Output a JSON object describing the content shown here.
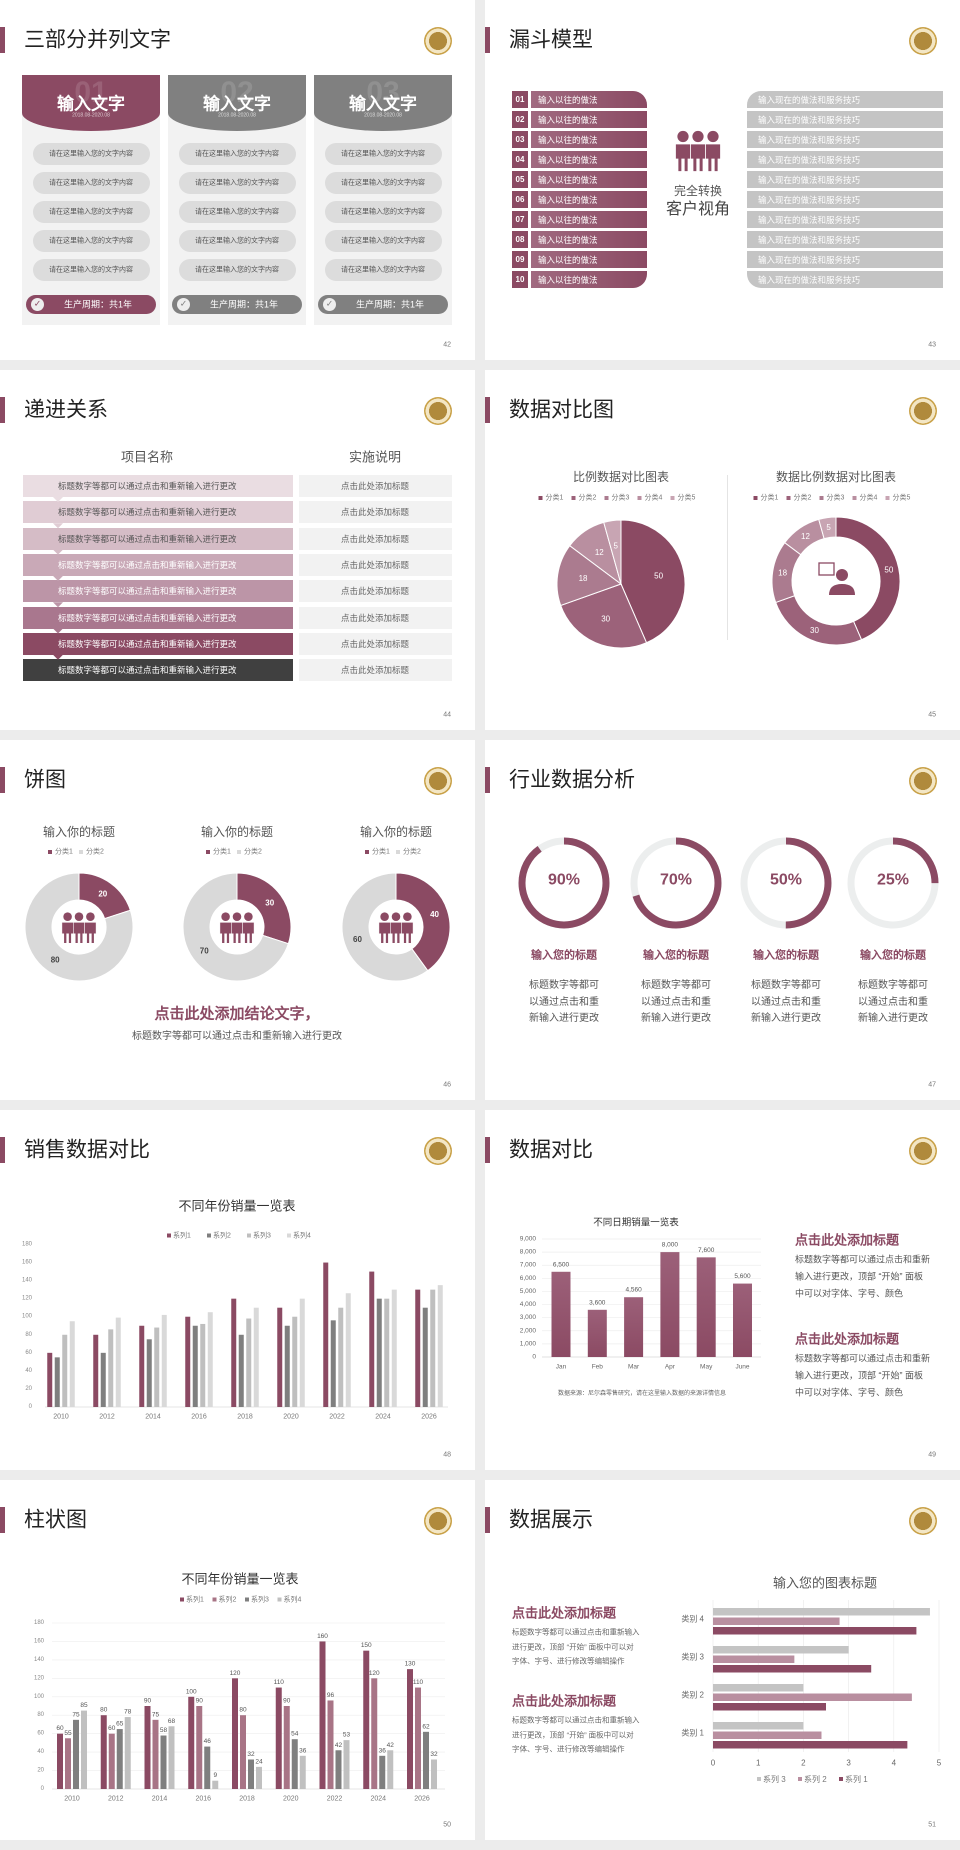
{
  "colors": {
    "accent": "#8b4a63",
    "gray": "#808080",
    "light_gray": "#d9d9d9",
    "panel": "#f2f2f2",
    "logo_gold": "#c9a24a"
  },
  "slides": [
    {
      "page": "42",
      "title": "三部分并列文字",
      "cards": [
        {
          "number": "01",
          "title": "输入文字",
          "date": "2018.08-2020.08",
          "items": [
            "请在这里输入您的文字内容",
            "请在这里输入您的文字内容",
            "请在这里输入您的文字内容",
            "请在这里输入您的文字内容",
            "请在这里输入您的文字内容"
          ],
          "footer": "生产周期：共1年"
        },
        {
          "number": "02",
          "title": "输入文字",
          "date": "2018.08-2020.08",
          "items": [
            "请在这里输入您的文字内容",
            "请在这里输入您的文字内容",
            "请在这里输入您的文字内容",
            "请在这里输入您的文字内容",
            "请在这里输入您的文字内容"
          ],
          "footer": "生产周期：共1年"
        },
        {
          "number": "03",
          "title": "输入文字",
          "date": "2018.08-2020.08",
          "items": [
            "请在这里输入您的文字内容",
            "请在这里输入您的文字内容",
            "请在这里输入您的文字内容",
            "请在这里输入您的文字内容",
            "请在这里输入您的文字内容"
          ],
          "footer": "生产周期：共1年"
        }
      ]
    },
    {
      "page": "43",
      "title": "漏斗模型",
      "left_rows": [
        {
          "num": "01",
          "text": "输入以往的做法"
        },
        {
          "num": "02",
          "text": "输入以往的做法"
        },
        {
          "num": "03",
          "text": "输入以往的做法"
        },
        {
          "num": "04",
          "text": "输入以往的做法"
        },
        {
          "num": "05",
          "text": "输入以往的做法"
        },
        {
          "num": "06",
          "text": "输入以往的做法"
        },
        {
          "num": "07",
          "text": "输入以往的做法"
        },
        {
          "num": "08",
          "text": "输入以往的做法"
        },
        {
          "num": "09",
          "text": "输入以往的做法"
        },
        {
          "num": "10",
          "text": "输入以往的做法"
        }
      ],
      "right_rows": [
        "输入现在的做法和服务技巧",
        "输入现在的做法和服务技巧",
        "输入现在的做法和服务技巧",
        "输入现在的做法和服务技巧",
        "输入现在的做法和服务技巧",
        "输入现在的做法和服务技巧",
        "输入现在的做法和服务技巧",
        "输入现在的做法和服务技巧",
        "输入现在的做法和服务技巧",
        "输入现在的做法和服务技巧"
      ],
      "center_line1": "完全转换",
      "center_line2": "客户视角",
      "center_icon": "people-group-icon"
    },
    {
      "page": "44",
      "title": "递进关系",
      "col1_header": "项目名称",
      "col2_header": "实施说明",
      "rows": [
        {
          "item": "标题数字等都可以通过点击和重新输入进行更改",
          "note": "点击此处添加标题"
        },
        {
          "item": "标题数字等都可以通过点击和重新输入进行更改",
          "note": "点击此处添加标题"
        },
        {
          "item": "标题数字等都可以通过点击和重新输入进行更改",
          "note": "点击此处添加标题"
        },
        {
          "item": "标题数字等都可以通过点击和重新输入进行更改",
          "note": "点击此处添加标题"
        },
        {
          "item": "标题数字等都可以通过点击和重新输入进行更改",
          "note": "点击此处添加标题"
        },
        {
          "item": "标题数字等都可以通过点击和重新输入进行更改",
          "note": "点击此处添加标题"
        },
        {
          "item": "标题数字等都可以通过点击和重新输入进行更改",
          "note": "点击此处添加标题"
        },
        {
          "item": "标题数字等都可以通过点击和重新输入进行更改",
          "note": "点击此处添加标题"
        }
      ],
      "row_colors": [
        "#eadde2",
        "#e0ccd4",
        "#d5bcc6",
        "#c9a9b7",
        "#bc95a7",
        "#a9778e",
        "#8b4a63",
        "#404040"
      ]
    },
    {
      "page": "45",
      "title": "数据对比图",
      "charts": [
        0,
        1
      ],
      "donut_icon": "customer-service-icon"
    },
    {
      "page": "46",
      "title": "饼图",
      "charts": [
        2,
        3,
        4
      ],
      "conclusion": "点击此处添加结论文字，",
      "subtitle": "标题数字等都可以通过点击和重新输入进行更改"
    },
    {
      "page": "47",
      "title": "行业数据分析",
      "rings": [
        {
          "percent": 90,
          "label": "90%",
          "heading": "输入您的标题",
          "lines": [
            "标题数字等都可",
            "以通过点击和重",
            "新输入进行更改"
          ]
        },
        {
          "percent": 70,
          "label": "70%",
          "heading": "输入您的标题",
          "lines": [
            "标题数字等都可",
            "以通过点击和重",
            "新输入进行更改"
          ]
        },
        {
          "percent": 50,
          "label": "50%",
          "heading": "输入您的标题",
          "lines": [
            "标题数字等都可",
            "以通过点击和重",
            "新输入进行更改"
          ]
        },
        {
          "percent": 25,
          "label": "25%",
          "heading": "输入您的标题",
          "lines": [
            "标题数字等都可",
            "以通过点击和重",
            "新输入进行更改"
          ]
        }
      ]
    },
    {
      "page": "48",
      "title": "销售数据对比",
      "charts": [
        5
      ]
    },
    {
      "page": "49",
      "title": "数据对比",
      "charts": [
        6
      ],
      "source": "数据来源：尼尔森零售研究，请在这里输入数据的来源详情信息",
      "blocks": [
        {
          "heading": "点击此处添加标题",
          "lines": [
            "标题数字等都可以通过点击和重新",
            "输入进行更改，顶部 “开始” 面板",
            "中可以对字体、字号、颜色"
          ]
        },
        {
          "heading": "点击此处添加标题",
          "lines": [
            "标题数字等都可以通过点击和重新",
            "输入进行更改，顶部 “开始” 面板",
            "中可以对字体、字号、颜色"
          ]
        }
      ]
    },
    {
      "page": "50",
      "title": "柱状图",
      "charts": [
        7
      ]
    },
    {
      "page": "51",
      "title": "数据展示",
      "charts": [
        8
      ],
      "blocks": [
        {
          "heading": "点击此处添加标题",
          "lines": [
            "标题数字等都可以通过点击和重新输入",
            "进行更改，顶部 “开始” 面板中可以对",
            "字体、字号、进行修改等编辑操作"
          ]
        },
        {
          "heading": "点击此处添加标题",
          "lines": [
            "标题数字等都可以通过点击和重新输入",
            "进行更改，顶部 “开始” 面板中可以对",
            "字体、字号、进行修改等编辑操作"
          ]
        }
      ]
    }
  ],
  "chart_data": [
    {
      "type": "pie",
      "title": "比例数据对比图表",
      "categories": [
        "分类1",
        "分类2",
        "分类3",
        "分类4",
        "分类5"
      ],
      "values": [
        50,
        30,
        18,
        12,
        5
      ],
      "colors": [
        "#8b4a63",
        "#9c627a",
        "#ab7b8f",
        "#b98fa0",
        "#c8a5b3"
      ],
      "legend": "top"
    },
    {
      "type": "pie",
      "donut": true,
      "title": "数据比例数据对比图表",
      "categories": [
        "分类1",
        "分类2",
        "分类3",
        "分类4",
        "分类5"
      ],
      "values": [
        50,
        30,
        18,
        12,
        5
      ],
      "colors": [
        "#8b4a63",
        "#9c627a",
        "#ab7b8f",
        "#b98fa0",
        "#c8a5b3"
      ],
      "legend": "top"
    },
    {
      "type": "pie",
      "donut": true,
      "title": "输入你的标题",
      "categories": [
        "分类1",
        "分类2"
      ],
      "values": [
        20,
        80
      ],
      "colors": [
        "#8b4a63",
        "#d9d9d9"
      ],
      "legend": "top"
    },
    {
      "type": "pie",
      "donut": true,
      "title": "输入你的标题",
      "categories": [
        "分类1",
        "分类2"
      ],
      "values": [
        30,
        70
      ],
      "colors": [
        "#8b4a63",
        "#d9d9d9"
      ],
      "legend": "top"
    },
    {
      "type": "pie",
      "donut": true,
      "title": "输入你的标题",
      "categories": [
        "分类1",
        "分类2"
      ],
      "values": [
        40,
        60
      ],
      "colors": [
        "#8b4a63",
        "#d9d9d9"
      ],
      "legend": "top"
    },
    {
      "type": "bar",
      "title": "不同年份销量一览表",
      "categories": [
        "2010",
        "2012",
        "2014",
        "2016",
        "2018",
        "2020",
        "2022",
        "2024",
        "2026"
      ],
      "series": [
        {
          "name": "系列1",
          "color": "#8b4a63",
          "values": [
            60,
            80,
            90,
            100,
            120,
            110,
            160,
            150,
            130
          ]
        },
        {
          "name": "系列2",
          "color": "#7f7f7f",
          "values": [
            55,
            60,
            75,
            90,
            80,
            90,
            96,
            120,
            110
          ]
        },
        {
          "name": "系列3",
          "color": "#bfbfbf",
          "values": [
            80,
            86,
            88,
            92,
            98,
            100,
            110,
            120,
            130
          ]
        },
        {
          "name": "系列4",
          "color": "#d9d9d9",
          "values": [
            95,
            99,
            102,
            105,
            110,
            120,
            126,
            130,
            135
          ]
        }
      ],
      "ylim": [
        0,
        180
      ],
      "yticks": [
        "0",
        "20",
        "40",
        "60",
        "80",
        "100",
        "120",
        "140",
        "160",
        "180"
      ],
      "grid": false,
      "legend": "top"
    },
    {
      "type": "bar",
      "title": "不同日期销量一览表",
      "categories": [
        "Jan",
        "Feb",
        "Mar",
        "Apr",
        "May",
        "June"
      ],
      "values": [
        6500,
        3600,
        4560,
        8000,
        7600,
        5600
      ],
      "data_labels": [
        "6,500",
        "3,600",
        "4,560",
        "8,000",
        "7,600",
        "5,600"
      ],
      "color": "#8b4a63",
      "ylim": [
        0,
        9000
      ],
      "yticks": [
        "0",
        "1,000",
        "2,000",
        "3,000",
        "4,000",
        "5,000",
        "6,000",
        "7,000",
        "8,000",
        "9,000"
      ],
      "grid": true
    },
    {
      "type": "bar",
      "title": "不同年份销量一览表",
      "categories": [
        "2010",
        "2012",
        "2014",
        "2016",
        "2018",
        "2020",
        "2022",
        "2024",
        "2026"
      ],
      "series": [
        {
          "name": "系列1",
          "color": "#8b4a63",
          "values": [
            60,
            80,
            90,
            100,
            120,
            110,
            160,
            150,
            130
          ]
        },
        {
          "name": "系列2",
          "color": "#a87486",
          "values": [
            55,
            60,
            75,
            90,
            80,
            90,
            96,
            120,
            110
          ]
        },
        {
          "name": "系列3",
          "color": "#7f7f7f",
          "values": [
            75,
            65,
            58,
            46,
            32,
            54,
            42,
            36,
            62
          ]
        },
        {
          "name": "系列4",
          "color": "#c0c0c0",
          "values": [
            85,
            78,
            68,
            9,
            24,
            36,
            53,
            42,
            32
          ]
        }
      ],
      "ylim": [
        0,
        180
      ],
      "yticks": [
        "0",
        "20",
        "40",
        "60",
        "80",
        "100",
        "120",
        "140",
        "160",
        "180"
      ],
      "grid": true,
      "data_labels": true,
      "legend": "top"
    },
    {
      "type": "bar",
      "orientation": "horizontal",
      "title": "输入您的图表标题",
      "categories": [
        "类别 1",
        "类别 2",
        "类别 3",
        "类别 4"
      ],
      "series": [
        {
          "name": "系列 1",
          "color": "#8b4a63",
          "values": [
            4.3,
            2.5,
            3.5,
            4.5
          ]
        },
        {
          "name": "系列 2",
          "color": "#b98fa0",
          "values": [
            2.4,
            4.4,
            1.8,
            2.8
          ]
        },
        {
          "name": "系列 3",
          "color": "#c4c4c4",
          "values": [
            2.0,
            2.0,
            3.0,
            4.8
          ]
        }
      ],
      "xlim": [
        0,
        5
      ],
      "xticks": [
        "0",
        "1",
        "2",
        "3",
        "4",
        "5"
      ],
      "grid": true,
      "legend": "bottom"
    }
  ]
}
